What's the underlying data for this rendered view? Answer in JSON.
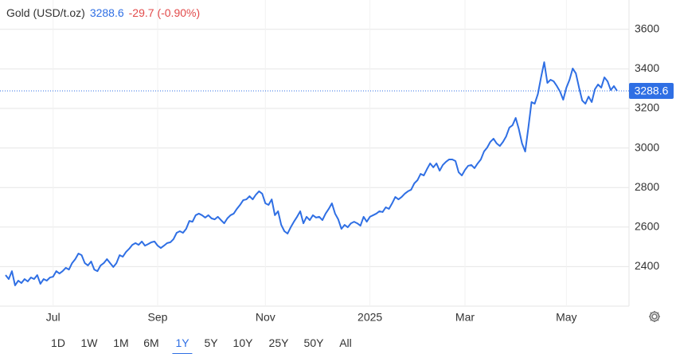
{
  "header": {
    "title": "Gold (USD/t.oz)",
    "change": "-29.7 (-0.90%)"
  },
  "chart_data": {
    "type": "line",
    "xlim": [
      0,
      193
    ],
    "xticks": [
      {
        "value": 15,
        "label": "Jul"
      },
      {
        "value": 48,
        "label": "Sep"
      },
      {
        "value": 82,
        "label": "Nov"
      },
      {
        "value": 115,
        "label": "2025"
      },
      {
        "value": 145,
        "label": "Mar"
      },
      {
        "value": 177,
        "label": "May"
      }
    ],
    "ylim": [
      2200,
      3700
    ],
    "yticks": [
      2400,
      2600,
      2800,
      3000,
      3200,
      3400,
      3600
    ],
    "grid": true,
    "series": [
      {
        "name": "Gold",
        "color": "#2f6fe4",
        "values": [
          2357,
          2337,
          2377,
          2305,
          2329,
          2317,
          2337,
          2325,
          2345,
          2337,
          2357,
          2313,
          2337,
          2329,
          2345,
          2349,
          2377,
          2365,
          2377,
          2394,
          2385,
          2418,
          2438,
          2466,
          2458,
          2418,
          2406,
          2426,
          2385,
          2377,
          2406,
          2418,
          2438,
          2418,
          2398,
          2418,
          2458,
          2450,
          2474,
          2490,
          2510,
          2519,
          2510,
          2527,
          2506,
          2514,
          2523,
          2527,
          2506,
          2494,
          2506,
          2519,
          2523,
          2539,
          2571,
          2579,
          2571,
          2591,
          2631,
          2627,
          2660,
          2668,
          2660,
          2648,
          2660,
          2644,
          2639,
          2652,
          2635,
          2619,
          2644,
          2660,
          2668,
          2692,
          2712,
          2736,
          2740,
          2756,
          2740,
          2764,
          2781,
          2769,
          2720,
          2712,
          2740,
          2660,
          2680,
          2611,
          2579,
          2567,
          2599,
          2627,
          2652,
          2680,
          2619,
          2652,
          2635,
          2660,
          2648,
          2652,
          2635,
          2668,
          2692,
          2720,
          2668,
          2639,
          2591,
          2611,
          2599,
          2619,
          2627,
          2619,
          2607,
          2652,
          2627,
          2652,
          2660,
          2668,
          2680,
          2676,
          2700,
          2692,
          2720,
          2752,
          2740,
          2752,
          2769,
          2781,
          2789,
          2821,
          2837,
          2869,
          2861,
          2893,
          2922,
          2902,
          2922,
          2885,
          2914,
          2930,
          2942,
          2942,
          2934,
          2877,
          2861,
          2889,
          2910,
          2914,
          2898,
          2922,
          2942,
          2982,
          3002,
          3031,
          3047,
          3023,
          3010,
          3031,
          3059,
          3103,
          3115,
          3152,
          3095,
          3023,
          2982,
          3103,
          3232,
          3224,
          3273,
          3357,
          3434,
          3329,
          3345,
          3337,
          3313,
          3285,
          3244,
          3305,
          3345,
          3402,
          3377,
          3305,
          3240,
          3224,
          3260,
          3232,
          3297,
          3321,
          3305,
          3357,
          3337,
          3293,
          3313,
          3288.6
        ]
      }
    ]
  },
  "ranges": [
    "1D",
    "1W",
    "1M",
    "6M",
    "1Y",
    "5Y",
    "10Y",
    "25Y",
    "50Y",
    "All"
  ],
  "selected_range": "1Y"
}
